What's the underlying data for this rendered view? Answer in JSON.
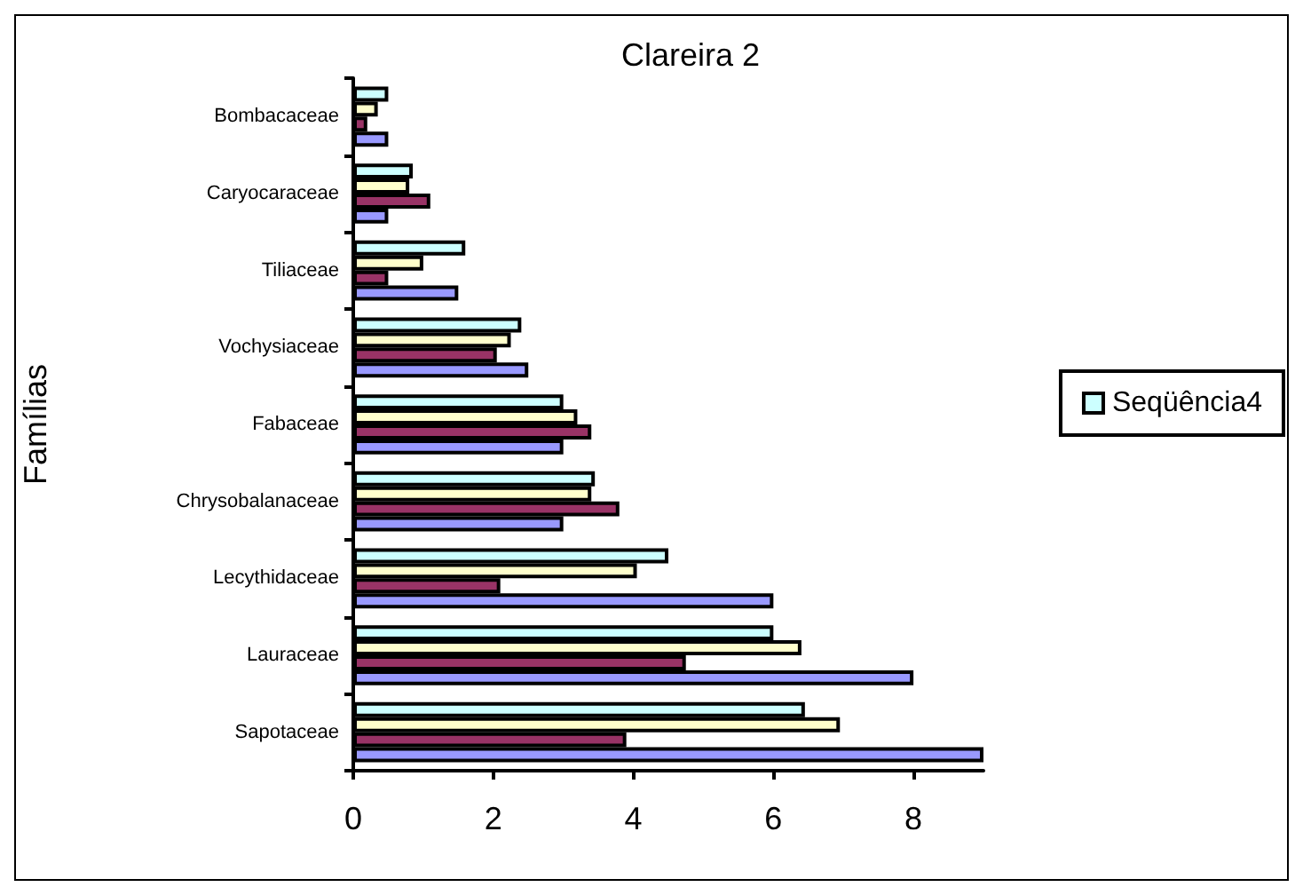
{
  "chart_data": {
    "type": "bar",
    "orientation": "horizontal",
    "title": "Clareira 2",
    "ylabel": "Famílias",
    "categories": [
      "Bombacaceae",
      "Caryocaraceae",
      "Tiliaceae",
      "Vochysiaceae",
      "Fabaceae",
      "Chrysobalanaceae",
      "Lecythidaceae",
      "Lauraceae",
      "Sapotaceae"
    ],
    "series": [
      {
        "color": "#9999ff",
        "values": [
          0.5,
          0.5,
          1.5,
          2.5,
          3.0,
          3.0,
          6.0,
          8.0,
          9.0
        ]
      },
      {
        "color": "#993366",
        "values": [
          0.2,
          1.1,
          0.5,
          2.05,
          3.4,
          3.8,
          2.1,
          4.75,
          3.9
        ]
      },
      {
        "color": "#ffffcc",
        "values": [
          0.35,
          0.8,
          1.0,
          2.25,
          3.2,
          3.4,
          4.05,
          6.4,
          6.95
        ]
      },
      {
        "name": "Seqüência4",
        "color": "#ccffff",
        "values": [
          0.5,
          0.85,
          1.6,
          2.4,
          3.0,
          3.45,
          4.5,
          6.0,
          6.45
        ]
      }
    ],
    "xlim": [
      0,
      9
    ],
    "xticks": [
      0,
      2,
      4,
      6,
      8
    ],
    "grid": false,
    "legend": "right"
  }
}
